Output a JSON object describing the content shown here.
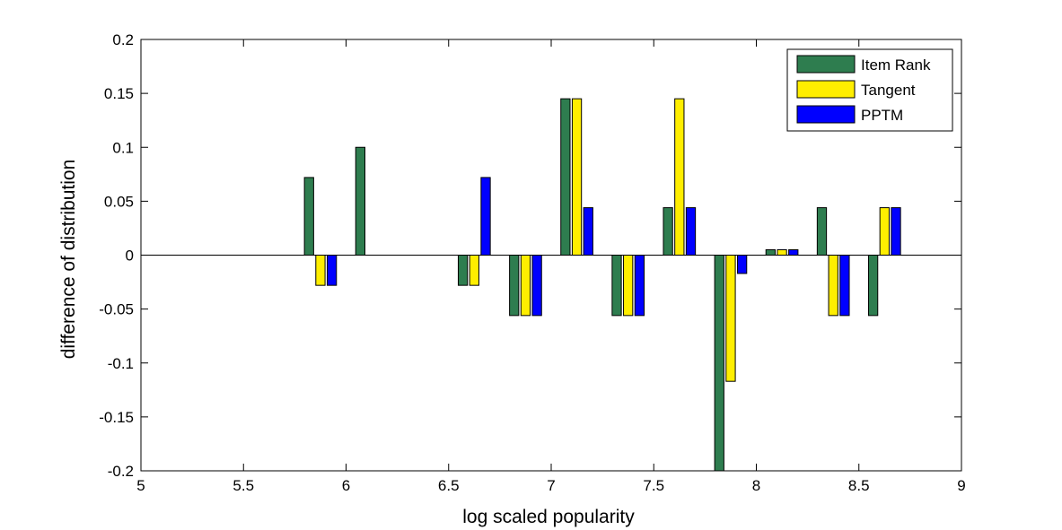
{
  "chart_data": {
    "type": "bar",
    "xlabel": "log scaled popularity",
    "ylabel": "difference of distribution",
    "xlim": [
      5,
      9
    ],
    "ylim": [
      -0.2,
      0.2
    ],
    "xticks": [
      "5",
      "5.5",
      "6",
      "6.5",
      "7",
      "7.5",
      "8",
      "8.5",
      "9"
    ],
    "yticks": [
      "-0.2",
      "-0.15",
      "-0.1",
      "-0.05",
      "0",
      "0.05",
      "0.1",
      "0.15",
      "0.2"
    ],
    "bar_spacing_in_x_units": 0.25,
    "bar_width_in_x_units": 0.045,
    "categories": [
      5.875,
      6.125,
      6.375,
      6.625,
      6.875,
      7.125,
      7.375,
      7.625,
      7.875,
      8.125,
      8.375,
      8.625
    ],
    "series": [
      {
        "name": "Item Rank",
        "color": "#2e7d4f",
        "values": [
          0.072,
          0.1,
          0,
          -0.028,
          -0.056,
          0.145,
          -0.056,
          0.044,
          -0.2,
          0.005,
          0.044,
          -0.056
        ]
      },
      {
        "name": "Tangent",
        "color": "#ffee00",
        "values": [
          -0.028,
          0,
          0,
          -0.028,
          -0.056,
          0.145,
          -0.056,
          0.145,
          -0.117,
          0.005,
          -0.056,
          0.044
        ]
      },
      {
        "name": "PPTM",
        "color": "#0000ff",
        "values": [
          -0.028,
          0,
          0,
          0.072,
          -0.056,
          0.044,
          -0.056,
          0.044,
          -0.017,
          0.005,
          -0.056,
          0.044
        ]
      }
    ],
    "legend_position": "top-right",
    "grid": false
  }
}
